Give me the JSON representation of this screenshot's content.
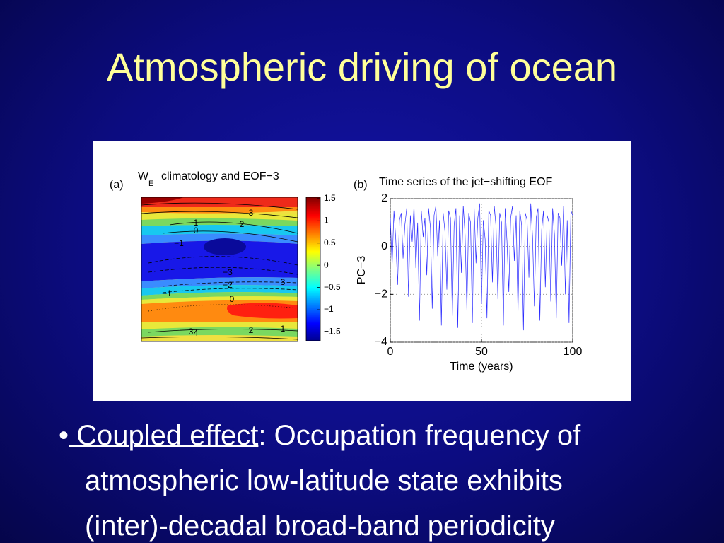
{
  "slide": {
    "title": "Atmospheric driving of ocean",
    "bullet": {
      "mark": "•",
      "link": " Coupled effect",
      "line1": ": Occupation frequency of",
      "line2": "atmospheric low-latitude state exhibits",
      "line3": "(inter)-decadal broad-band periodicity"
    }
  },
  "chart_data": [
    {
      "type": "contour",
      "panel": "(a)",
      "title_main": "W",
      "title_sub": "E",
      "title_rest": "climatology and EOF−3",
      "clim": [
        -1.7,
        1.53
      ],
      "cticks": [
        1.5,
        1,
        {
          "value": 0.5,
          "label": "0.5"
        },
        0,
        {
          "value": -0.5,
          "label": "−0.5"
        },
        {
          "value": -1,
          "label": "−1"
        },
        {
          "value": -1.5,
          "label": "−1.5"
        }
      ],
      "contour_labels": [
        "3",
        "1",
        "2",
        "0",
        "−1",
        "−3",
        "−2",
        "3",
        "−1",
        "0",
        "3",
        "4",
        "2",
        "1"
      ]
    },
    {
      "type": "line",
      "panel": "(b)",
      "title": "Time series of the jet−shifting EOF",
      "ylabel": "PC−3",
      "xlabel": "Time (years)",
      "xlim": [
        0,
        100
      ],
      "ylim": [
        -4,
        2
      ],
      "xticks": [
        0,
        50,
        100
      ],
      "yticks": [
        {
          "value": -4,
          "label": "−4"
        },
        {
          "value": -2,
          "label": "−2"
        },
        0,
        2
      ],
      "grid": true,
      "color": "#2a2aff",
      "x": [
        0,
        1,
        2,
        3,
        4,
        5,
        6,
        7,
        8,
        9,
        10,
        11,
        12,
        13,
        14,
        15,
        16,
        17,
        18,
        19,
        20,
        21,
        22,
        23,
        24,
        25,
        26,
        27,
        28,
        29,
        30,
        31,
        32,
        33,
        34,
        35,
        36,
        37,
        38,
        39,
        40,
        41,
        42,
        43,
        44,
        45,
        46,
        47,
        48,
        49,
        50,
        51,
        52,
        53,
        54,
        55,
        56,
        57,
        58,
        59,
        60,
        61,
        62,
        63,
        64,
        65,
        66,
        67,
        68,
        69,
        70,
        71,
        72,
        73,
        74,
        75,
        76,
        77,
        78,
        79,
        80,
        81,
        82,
        83,
        84,
        85,
        86,
        87,
        88,
        89,
        90,
        91,
        92,
        93,
        94,
        95,
        96,
        97,
        98,
        99,
        100
      ],
      "values": [
        1.2,
        -0.8,
        1.5,
        0.3,
        -1.6,
        1.1,
        1.4,
        -0.5,
        0.9,
        1.6,
        -2.1,
        1.3,
        0.2,
        1.7,
        -0.9,
        1.0,
        -3.1,
        1.5,
        0.4,
        1.2,
        -1.2,
        1.6,
        0.8,
        -2.6,
        1.3,
        1.7,
        -0.4,
        1.1,
        -3.3,
        1.4,
        0.6,
        -1.8,
        1.5,
        1.2,
        -2.9,
        0.9,
        1.6,
        -3.4,
        1.3,
        -1.1,
        1.7,
        0.5,
        -2.7,
        1.4,
        1.0,
        -3.2,
        1.6,
        -0.7,
        1.2,
        1.8,
        -2.4,
        1.1,
        0.3,
        -3.0,
        1.5,
        1.3,
        -1.5,
        1.7,
        0.8,
        -2.2,
        1.4,
        1.0,
        -3.3,
        1.6,
        0.2,
        -1.9,
        1.2,
        1.7,
        -0.6,
        1.3,
        -2.8,
        1.5,
        0.9,
        -3.5,
        1.4,
        1.1,
        -1.3,
        1.8,
        0.4,
        -2.5,
        1.2,
        1.6,
        -3.1,
        0.7,
        1.5,
        -1.7,
        1.3,
        1.0,
        -2.3,
        1.6,
        0.5,
        -3.0,
        1.4,
        1.2,
        -0.8,
        1.7,
        -2.0,
        1.1,
        -3.2,
        1.5,
        1.3
      ]
    }
  ]
}
